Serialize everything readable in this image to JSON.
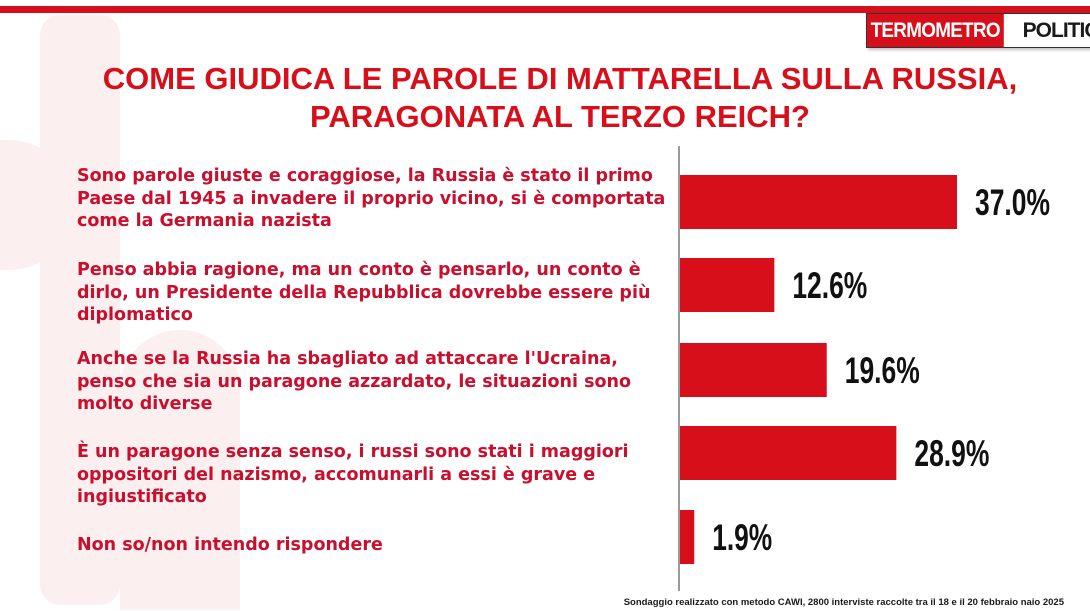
{
  "header": {
    "logo_part1": "TERMOMETRO",
    "logo_part2": "POLITICO",
    "title": "COME GIUDICA LE PAROLE DI MATTARELLA SULLA RUSSIA, PARAGONATA AL TERZO REICH?"
  },
  "colors": {
    "accent": "#d60f1b",
    "label_text": "#c8102e",
    "bar": "#d60f1b"
  },
  "chart_data": {
    "type": "bar",
    "orientation": "horizontal",
    "categories": [
      "Sono parole giuste e coraggiose, la Russia è stato il primo Paese dal 1945 a invadere il proprio vicino, si è comportata come la Germania nazista",
      "Penso abbia ragione, ma un conto è pensarlo, un conto è dirlo, un Presidente della Repubblica dovrebbe essere più diplomatico",
      "Anche se la Russia ha sbagliato ad attaccare l'Ucraina, penso che sia un paragone azzardato, le situazioni sono molto diverse",
      "È un paragone senza senso, i russi sono stati i maggiori oppositori del nazismo, accomunarli a essi è grave e ingiustificato",
      "Non so/non intendo rispondere"
    ],
    "values": [
      37.0,
      12.6,
      19.6,
      28.9,
      1.9
    ],
    "value_labels": [
      "37.0%",
      "12.6%",
      "19.6%",
      "28.9%",
      "1.9%"
    ],
    "unit": "%",
    "xlim": [
      0,
      40
    ],
    "grid": false,
    "legend": "none"
  },
  "footnote": "Sondaggio realizzato con metodo CAWI, 2800 interviste raccolte tra il 18 e il 20 febbraio naio 2025"
}
